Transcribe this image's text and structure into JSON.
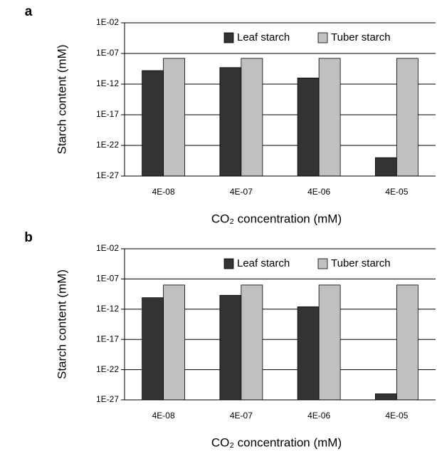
{
  "chart_data": [
    {
      "type": "bar",
      "label": "a",
      "ylabel": "Starch content (mM)",
      "xlabel": "CO₂ concentration (mM)",
      "categories": [
        "4E-08",
        "4E-07",
        "4E-06",
        "4E-05"
      ],
      "series": [
        {
          "name": "Leaf starch",
          "color": "#333333",
          "values": [
            1.6e-10,
            5e-10,
            1e-11,
            1e-24
          ]
        },
        {
          "name": "Tuber starch",
          "color": "#c0c0c0",
          "values": [
            1.6e-08,
            1.6e-08,
            1.6e-08,
            1.6e-08
          ]
        }
      ],
      "ylim": [
        1e-27,
        0.01
      ],
      "log_scale": true,
      "grid": true,
      "legend": "top-right",
      "yticks": [
        {
          "value": 1e-27,
          "label": "1E-27"
        },
        {
          "value": 1e-22,
          "label": "1E-22"
        },
        {
          "value": 1e-17,
          "label": "1E-17"
        },
        {
          "value": 1e-12,
          "label": "1E-12"
        },
        {
          "value": 1e-07,
          "label": "1E-07"
        },
        {
          "value": 0.01,
          "label": "1E-02"
        }
      ]
    },
    {
      "type": "bar",
      "label": "b",
      "ylabel": "Starch content (mM)",
      "xlabel": "CO₂ concentration (mM)",
      "categories": [
        "4E-08",
        "4E-07",
        "4E-06",
        "4E-05"
      ],
      "series": [
        {
          "name": "Leaf starch",
          "color": "#333333",
          "values": [
            8e-11,
            2e-10,
            2.5e-12,
            1e-26
          ]
        },
        {
          "name": "Tuber starch",
          "color": "#c0c0c0",
          "values": [
            1e-08,
            1e-08,
            1e-08,
            1e-08
          ]
        }
      ],
      "ylim": [
        1e-27,
        0.01
      ],
      "log_scale": true,
      "grid": true,
      "legend": "top-right",
      "yticks": [
        {
          "value": 1e-27,
          "label": "1E-27"
        },
        {
          "value": 1e-22,
          "label": "1E-22"
        },
        {
          "value": 1e-17,
          "label": "1E-17"
        },
        {
          "value": 1e-12,
          "label": "1E-12"
        },
        {
          "value": 1e-07,
          "label": "1E-07"
        },
        {
          "value": 0.01,
          "label": "1E-02"
        }
      ]
    }
  ]
}
